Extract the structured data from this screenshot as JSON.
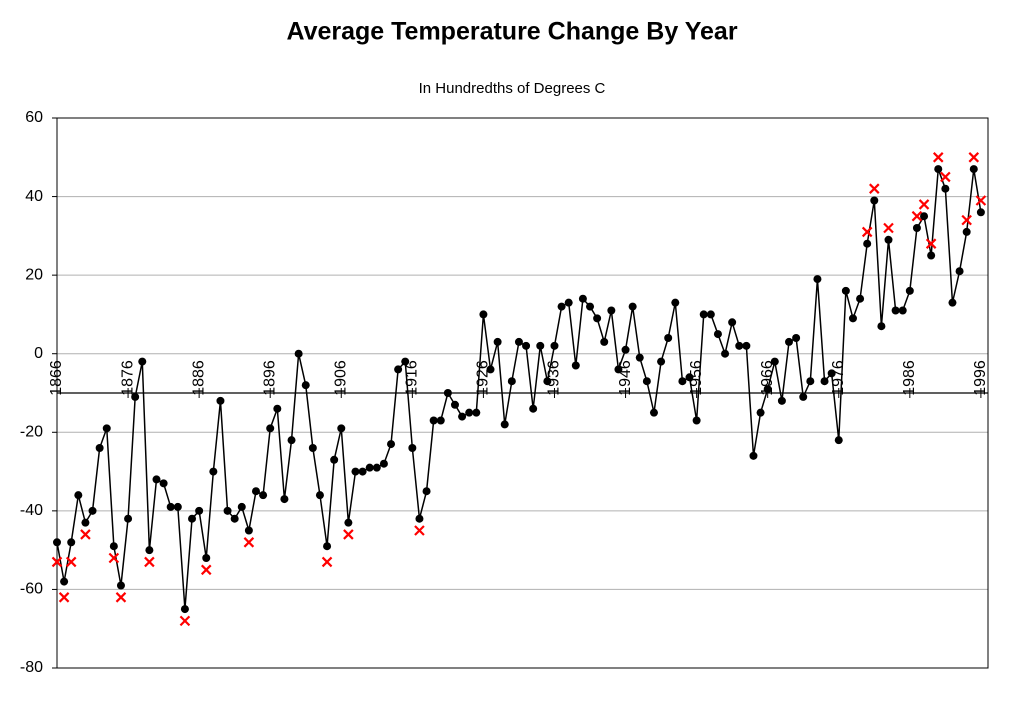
{
  "chart_data": {
    "type": "line",
    "title": "Average Temperature Change By Year",
    "subtitle": "In Hundredths of Degrees C",
    "xlim": [
      1866,
      1997
    ],
    "xticks": [
      1866,
      1876,
      1886,
      1896,
      1906,
      1916,
      1926,
      1936,
      1946,
      1956,
      1966,
      1976,
      1986,
      1996
    ],
    "ylim": [
      -80,
      60
    ],
    "yticks": [
      -80,
      -60,
      -40,
      -20,
      0,
      20,
      40,
      60
    ],
    "x_axis_crossing": -10,
    "grid": true,
    "series": [
      {
        "color": "#000000",
        "marker": "circle",
        "x": [
          1866,
          1867,
          1868,
          1869,
          1870,
          1871,
          1872,
          1873,
          1874,
          1875,
          1876,
          1877,
          1878,
          1879,
          1880,
          1881,
          1882,
          1883,
          1884,
          1885,
          1886,
          1887,
          1888,
          1889,
          1890,
          1891,
          1892,
          1893,
          1894,
          1895,
          1896,
          1897,
          1898,
          1899,
          1900,
          1901,
          1902,
          1903,
          1904,
          1905,
          1906,
          1907,
          1908,
          1909,
          1910,
          1911,
          1912,
          1913,
          1914,
          1915,
          1916,
          1917,
          1918,
          1919,
          1920,
          1921,
          1922,
          1923,
          1924,
          1925,
          1926,
          1927,
          1928,
          1929,
          1930,
          1931,
          1932,
          1933,
          1934,
          1935,
          1936,
          1937,
          1938,
          1939,
          1940,
          1941,
          1942,
          1943,
          1944,
          1945,
          1946,
          1947,
          1948,
          1949,
          1950,
          1951,
          1952,
          1953,
          1954,
          1955,
          1956,
          1957,
          1958,
          1959,
          1960,
          1961,
          1962,
          1963,
          1964,
          1965,
          1966,
          1967,
          1968,
          1969,
          1970,
          1971,
          1972,
          1973,
          1974,
          1975,
          1976,
          1977,
          1978,
          1979,
          1980,
          1981,
          1982,
          1983,
          1984,
          1985,
          1986,
          1987,
          1988,
          1989,
          1990,
          1991,
          1992,
          1993,
          1994,
          1995,
          1996
        ],
        "values": [
          -48,
          -58,
          -48,
          -36,
          -43,
          -40,
          -24,
          -19,
          -49,
          -59,
          -42,
          -11,
          -2,
          -50,
          -32,
          -33,
          -39,
          -39,
          -65,
          -42,
          -40,
          -52,
          -30,
          -12,
          -40,
          -42,
          -39,
          -45,
          -35,
          -36,
          -19,
          -14,
          -37,
          -22,
          0,
          -8,
          -24,
          -36,
          -49,
          -27,
          -19,
          -43,
          -30,
          -30,
          -29,
          -29,
          -28,
          -23,
          -4,
          -2,
          -24,
          -42,
          -35,
          -17,
          -17,
          -10,
          -13,
          -16,
          -15,
          -15,
          10,
          -4,
          3,
          -18,
          -7,
          3,
          2,
          -14,
          2,
          -7,
          2,
          12,
          13,
          -3,
          14,
          12,
          9,
          3,
          11,
          -4,
          1,
          12,
          -1,
          -7,
          -15,
          -2,
          4,
          13,
          -7,
          -6,
          -17,
          10,
          10,
          5,
          0,
          8,
          2,
          2,
          -26,
          -15,
          -9,
          -2,
          -12,
          3,
          4,
          -11,
          -7,
          19,
          -7,
          -5,
          -22,
          16,
          9,
          14,
          28,
          39,
          7,
          29,
          11,
          11,
          16,
          32,
          35,
          25,
          47,
          42,
          13,
          21,
          31,
          47,
          36
        ]
      },
      {
        "color": "#ff0000",
        "marker": "x",
        "x": [
          1866,
          1867,
          1868,
          1870,
          1874,
          1875,
          1879,
          1884,
          1887,
          1893,
          1904,
          1907,
          1917,
          1980,
          1981,
          1983,
          1987,
          1988,
          1989,
          1990,
          1991,
          1994,
          1995,
          1996
        ],
        "values": [
          -53,
          -62,
          -53,
          -46,
          -52,
          -62,
          -53,
          -68,
          -55,
          -48,
          -53,
          -46,
          -45,
          31,
          42,
          32,
          35,
          38,
          28,
          50,
          45,
          34,
          50,
          39
        ]
      }
    ]
  }
}
